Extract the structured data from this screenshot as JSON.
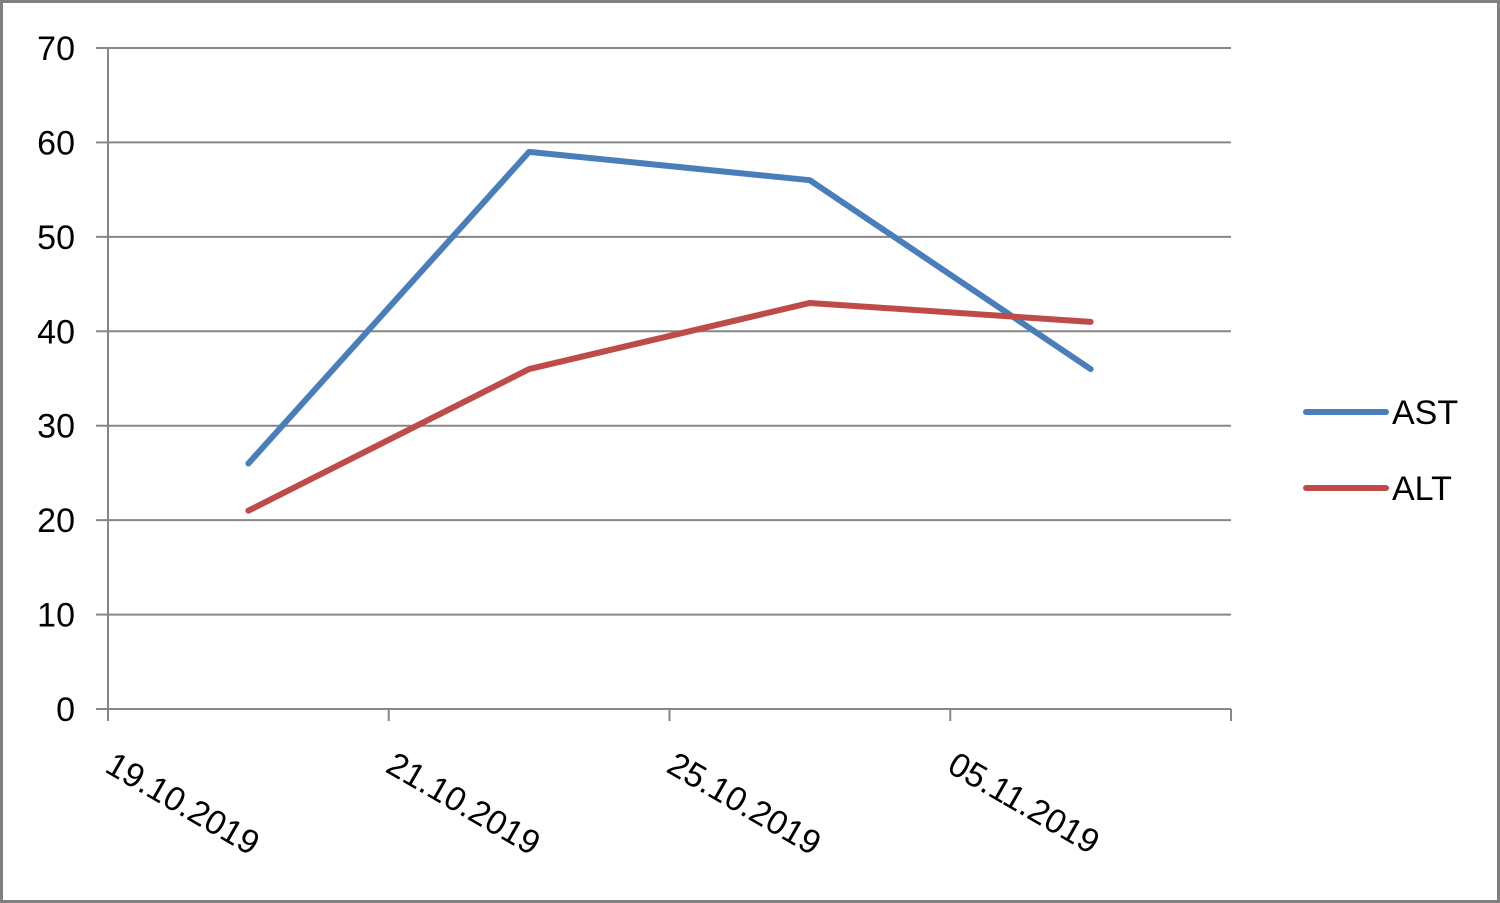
{
  "chart_data": {
    "type": "line",
    "categories": [
      "19.10.2019",
      "21.10.2019",
      "25.10.2019",
      "05.11.2019"
    ],
    "series": [
      {
        "name": "AST",
        "values": [
          26,
          59,
          56,
          36
        ],
        "color": "#4a7ebb"
      },
      {
        "name": "ALT",
        "values": [
          21,
          36,
          43,
          41
        ],
        "color": "#be4b48"
      }
    ],
    "title": "",
    "xlabel": "",
    "ylabel": "",
    "ylim": [
      0,
      70
    ],
    "yticks": [
      "0",
      "10",
      "20",
      "30",
      "40",
      "50",
      "60",
      "70"
    ],
    "grid": true,
    "legend": "right",
    "gridline_color": "#868686"
  }
}
